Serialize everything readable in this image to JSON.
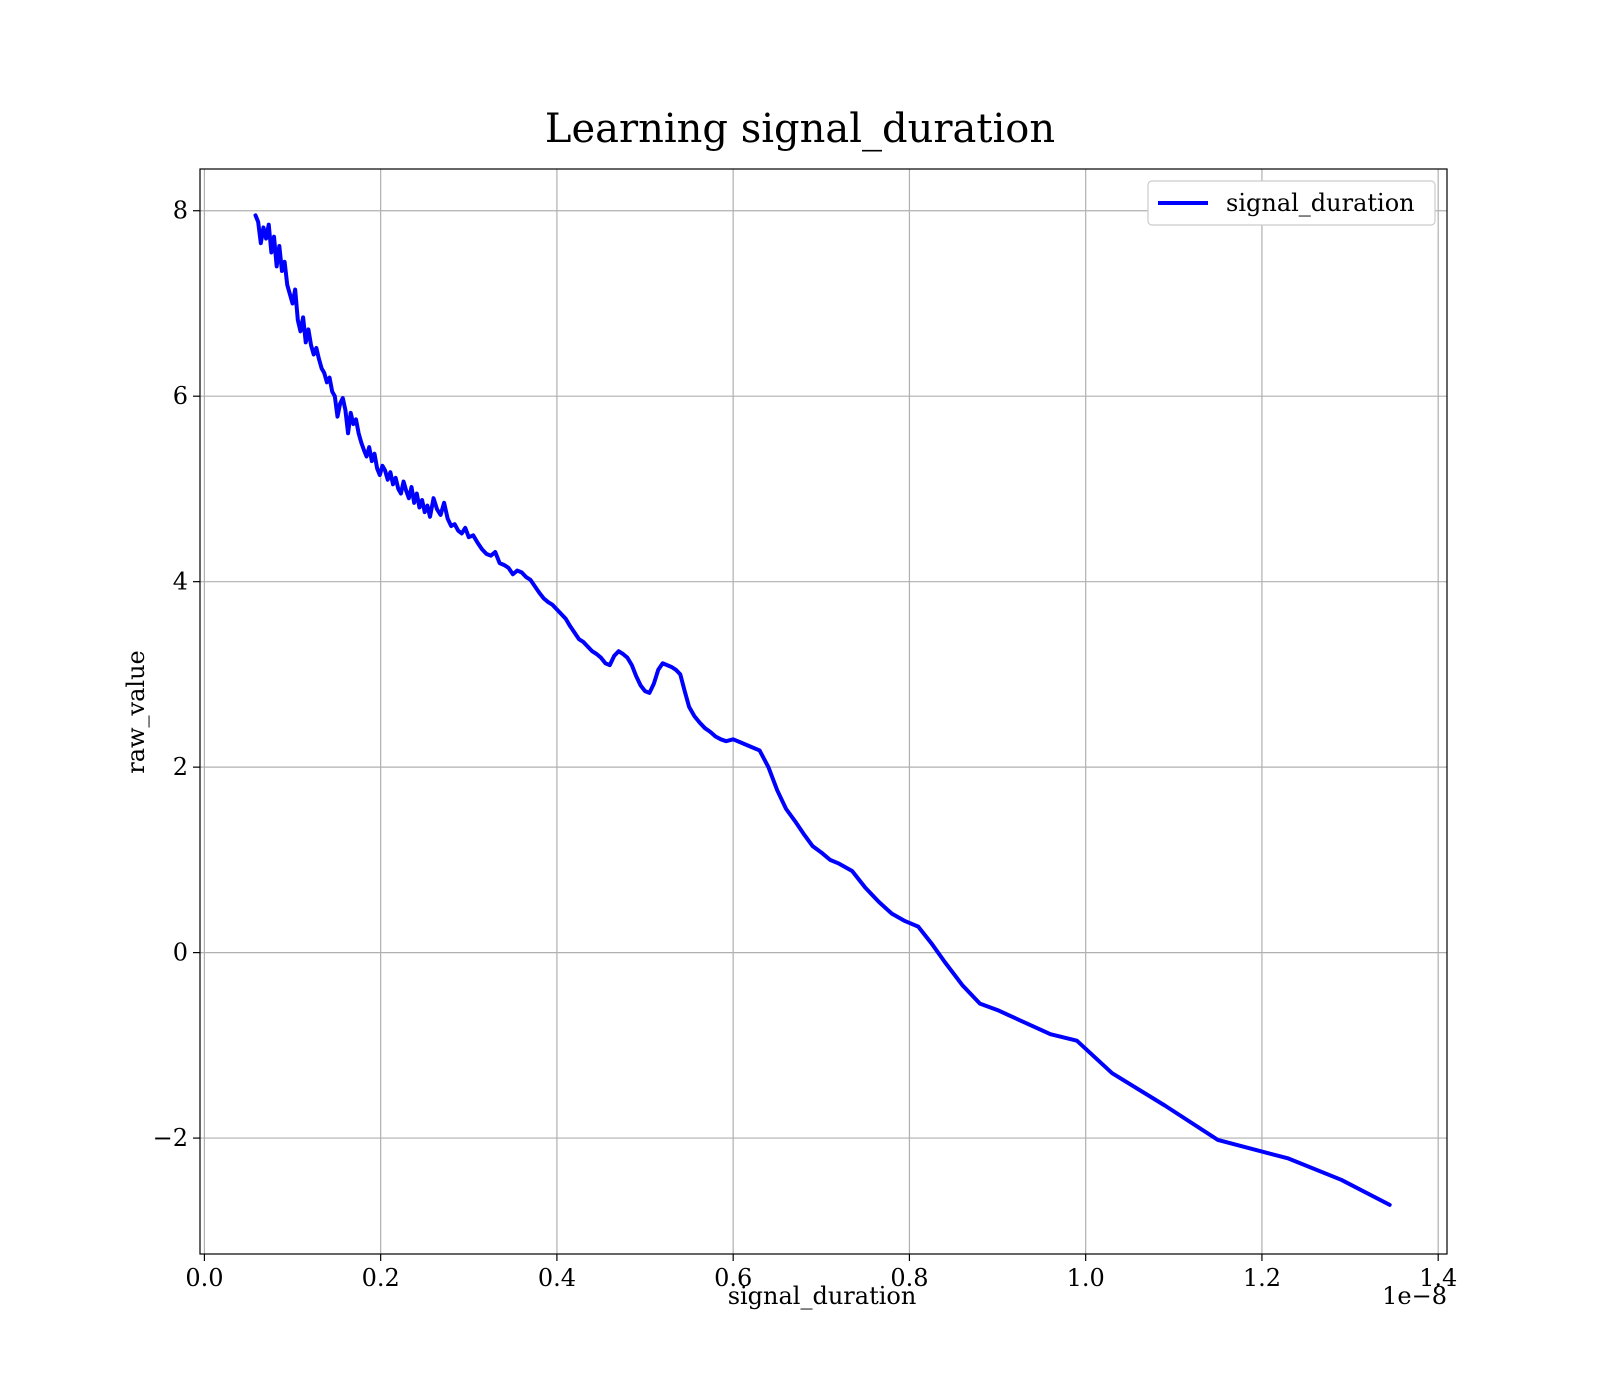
{
  "chart_data": {
    "type": "line",
    "title": "Learning signal_duration",
    "xlabel": "signal_duration",
    "ylabel": "raw_value",
    "x_offset_label": "1e−8",
    "xlim": [
      -0.005,
      1.41
    ],
    "ylim": [
      -3.25,
      8.45
    ],
    "x_ticks": [
      0.0,
      0.2,
      0.4,
      0.6,
      0.8,
      1.0,
      1.2,
      1.4
    ],
    "x_tick_labels": [
      "0.0",
      "0.2",
      "0.4",
      "0.6",
      "0.8",
      "1.0",
      "1.2",
      "1.4"
    ],
    "y_ticks": [
      -2,
      0,
      2,
      4,
      6,
      8
    ],
    "y_tick_labels": [
      "−2",
      "0",
      "2",
      "4",
      "6",
      "8"
    ],
    "grid": true,
    "legend_position": "top-right",
    "series": [
      {
        "name": "signal_duration",
        "color": "#0000ff",
        "x": [
          0.058,
          0.061,
          0.064,
          0.067,
          0.07,
          0.073,
          0.076,
          0.079,
          0.082,
          0.085,
          0.088,
          0.091,
          0.094,
          0.097,
          0.1,
          0.103,
          0.106,
          0.109,
          0.112,
          0.115,
          0.118,
          0.121,
          0.124,
          0.127,
          0.13,
          0.133,
          0.136,
          0.139,
          0.142,
          0.145,
          0.148,
          0.151,
          0.154,
          0.157,
          0.16,
          0.163,
          0.166,
          0.169,
          0.172,
          0.175,
          0.178,
          0.181,
          0.184,
          0.187,
          0.19,
          0.193,
          0.196,
          0.199,
          0.202,
          0.205,
          0.208,
          0.211,
          0.214,
          0.217,
          0.22,
          0.223,
          0.226,
          0.229,
          0.232,
          0.235,
          0.238,
          0.241,
          0.244,
          0.247,
          0.25,
          0.253,
          0.256,
          0.26,
          0.264,
          0.268,
          0.272,
          0.276,
          0.28,
          0.284,
          0.288,
          0.292,
          0.296,
          0.3,
          0.305,
          0.31,
          0.315,
          0.32,
          0.325,
          0.33,
          0.335,
          0.34,
          0.345,
          0.35,
          0.355,
          0.36,
          0.365,
          0.37,
          0.375,
          0.38,
          0.385,
          0.39,
          0.395,
          0.4,
          0.405,
          0.41,
          0.415,
          0.42,
          0.425,
          0.43,
          0.435,
          0.44,
          0.445,
          0.45,
          0.455,
          0.46,
          0.465,
          0.47,
          0.475,
          0.48,
          0.485,
          0.49,
          0.495,
          0.5,
          0.505,
          0.51,
          0.515,
          0.52,
          0.525,
          0.53,
          0.535,
          0.54,
          0.545,
          0.55,
          0.556,
          0.562,
          0.568,
          0.574,
          0.58,
          0.586,
          0.592,
          0.6,
          0.61,
          0.62,
          0.63,
          0.64,
          0.65,
          0.66,
          0.67,
          0.68,
          0.69,
          0.7,
          0.71,
          0.72,
          0.735,
          0.75,
          0.765,
          0.78,
          0.795,
          0.81,
          0.825,
          0.84,
          0.86,
          0.88,
          0.9,
          0.93,
          0.96,
          0.99,
          1.03,
          1.09,
          1.15,
          1.23,
          1.29,
          1.345
        ],
        "y": [
          7.95,
          7.88,
          7.65,
          7.82,
          7.7,
          7.85,
          7.55,
          7.72,
          7.4,
          7.62,
          7.35,
          7.45,
          7.2,
          7.1,
          7.0,
          7.15,
          6.82,
          6.7,
          6.85,
          6.58,
          6.72,
          6.55,
          6.45,
          6.52,
          6.4,
          6.3,
          6.25,
          6.15,
          6.2,
          6.05,
          6.0,
          5.78,
          5.92,
          5.98,
          5.85,
          5.6,
          5.82,
          5.7,
          5.75,
          5.6,
          5.5,
          5.42,
          5.35,
          5.45,
          5.3,
          5.38,
          5.22,
          5.15,
          5.25,
          5.2,
          5.1,
          5.18,
          5.05,
          5.12,
          5.0,
          4.95,
          5.08,
          4.98,
          4.9,
          5.02,
          4.85,
          4.95,
          4.8,
          4.88,
          4.75,
          4.82,
          4.7,
          4.9,
          4.78,
          4.72,
          4.85,
          4.68,
          4.6,
          4.62,
          4.55,
          4.52,
          4.58,
          4.48,
          4.5,
          4.42,
          4.35,
          4.3,
          4.28,
          4.32,
          4.2,
          4.18,
          4.15,
          4.08,
          4.12,
          4.1,
          4.05,
          4.02,
          3.95,
          3.88,
          3.82,
          3.78,
          3.75,
          3.7,
          3.65,
          3.6,
          3.52,
          3.45,
          3.38,
          3.35,
          3.3,
          3.25,
          3.22,
          3.18,
          3.12,
          3.1,
          3.2,
          3.25,
          3.22,
          3.18,
          3.1,
          2.98,
          2.88,
          2.82,
          2.8,
          2.9,
          3.05,
          3.12,
          3.1,
          3.08,
          3.05,
          3.0,
          2.82,
          2.65,
          2.55,
          2.48,
          2.42,
          2.38,
          2.33,
          2.3,
          2.28,
          2.3,
          2.26,
          2.22,
          2.18,
          2.0,
          1.75,
          1.55,
          1.42,
          1.28,
          1.15,
          1.08,
          1.0,
          0.96,
          0.88,
          0.7,
          0.55,
          0.42,
          0.34,
          0.28,
          0.1,
          -0.1,
          -0.35,
          -0.55,
          -0.62,
          -0.75,
          -0.88,
          -0.95,
          -1.3,
          -1.65,
          -2.02,
          -2.22,
          -2.45,
          -2.72
        ]
      }
    ]
  }
}
